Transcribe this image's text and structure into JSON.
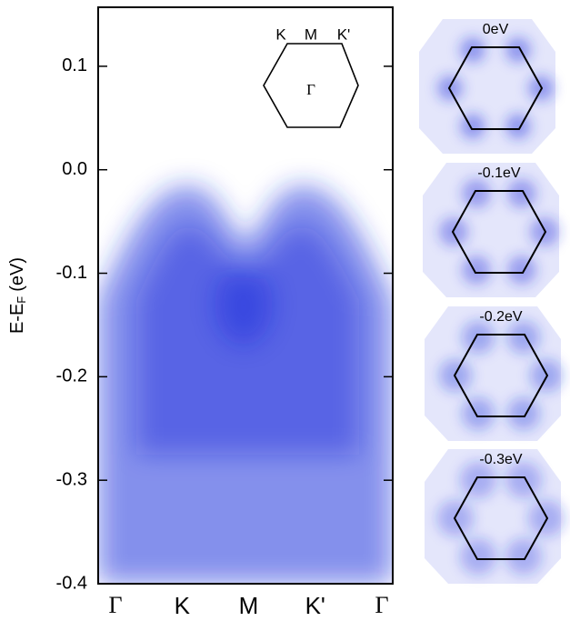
{
  "chart_data": {
    "type": "arpes",
    "y_label": {
      "main": "E-E",
      "sub": "F",
      "unit": "(eV)"
    },
    "categories": [
      "Γ",
      "K",
      "M",
      "K'",
      "Γ"
    ],
    "ylim": [
      -0.4,
      0.157
    ],
    "yticks": [
      0.1,
      {
        "value": 0,
        "label": "0.0"
      },
      -0.1,
      -0.2,
      -0.3,
      -0.4
    ],
    "color": "#2233dd",
    "inset": {
      "labels": [
        "K",
        "M",
        "K'"
      ],
      "center": "Γ"
    },
    "panels": [
      "0eV",
      "-0.1eV",
      "-0.2eV",
      "-0.3eV"
    ]
  }
}
